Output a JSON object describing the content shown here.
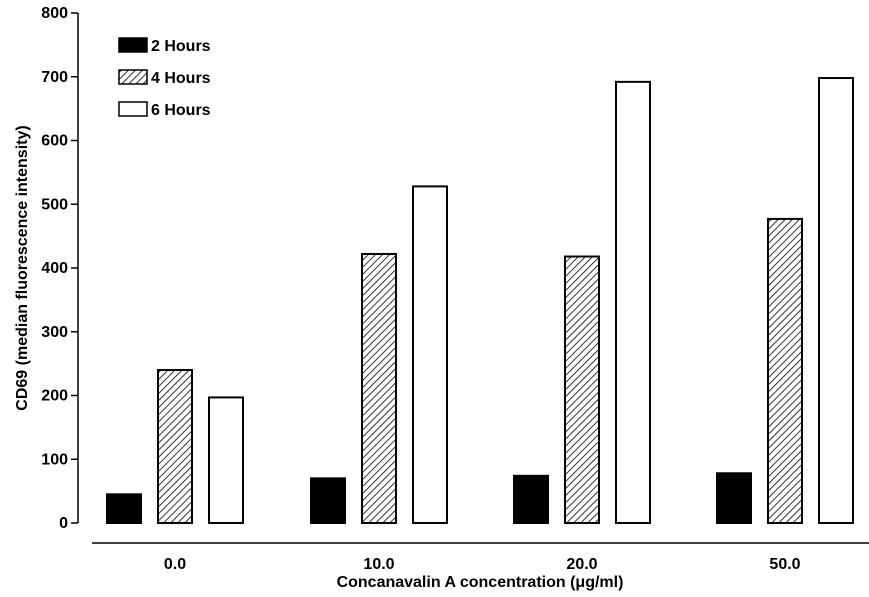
{
  "chart_data": {
    "type": "bar",
    "categories": [
      "0.0",
      "10.0",
      "20.0",
      "50.0"
    ],
    "series": [
      {
        "name": "2 Hours",
        "values": [
          45,
          70,
          74,
          78
        ],
        "fill": "solid"
      },
      {
        "name": "4 Hours",
        "values": [
          240,
          422,
          418,
          477
        ],
        "fill": "hatched"
      },
      {
        "name": "6 Hours",
        "values": [
          197,
          528,
          692,
          698
        ],
        "fill": "open"
      }
    ],
    "title": "",
    "xlabel": "Concanavalin A concentration (μg/ml)",
    "ylabel": "CD69 (median fluorescence intensity)",
    "ylim": [
      0,
      800
    ],
    "yticks": [
      "0",
      "100",
      "200",
      "300",
      "400",
      "500",
      "600",
      "700",
      "800"
    ],
    "grid": false,
    "legend_position": "top-left",
    "colors": {
      "bar_stroke": "#000000",
      "solid_fill": "#000000",
      "open_fill": "#ffffff"
    }
  }
}
